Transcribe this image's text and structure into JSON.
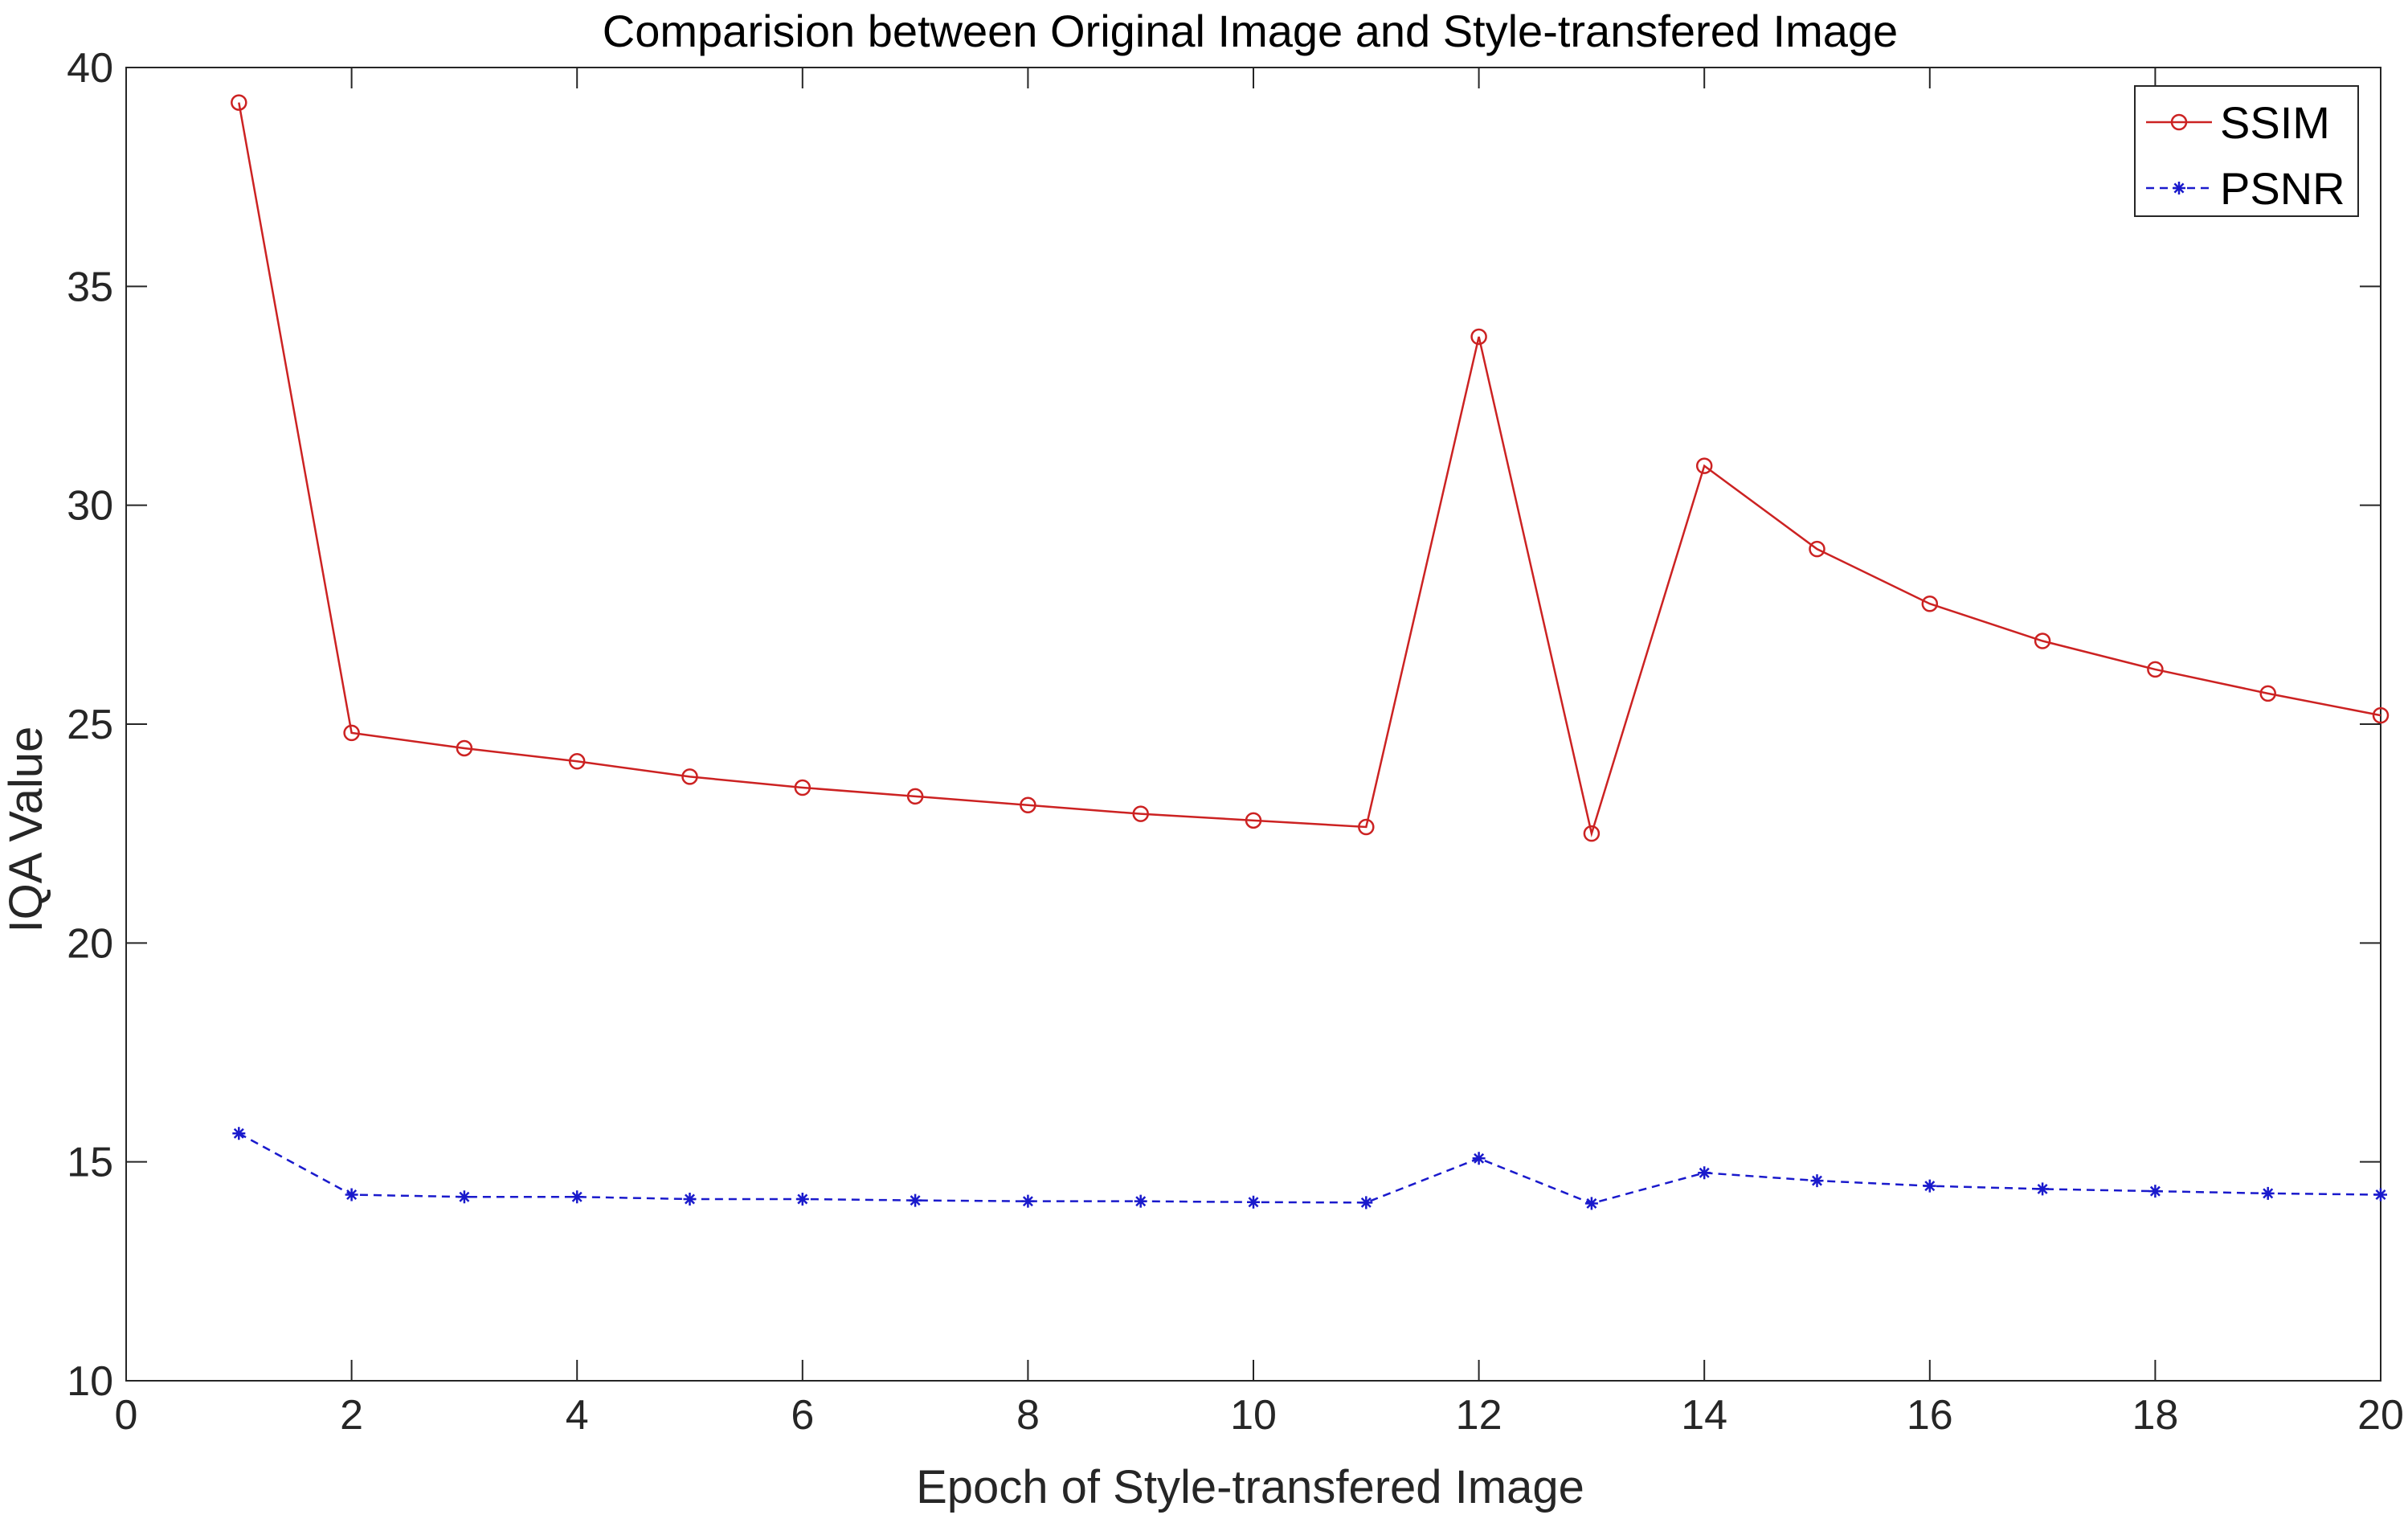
{
  "chart_data": {
    "type": "line",
    "title": "Comparision between Original Image and Style-transfered Image",
    "xlabel": "Epoch of Style-transfered Image",
    "ylabel": "IQA Value",
    "xlim": [
      0,
      20
    ],
    "ylim": [
      10,
      40
    ],
    "xticks": [
      0,
      2,
      4,
      6,
      8,
      10,
      12,
      14,
      16,
      18,
      20
    ],
    "yticks": [
      10,
      15,
      20,
      25,
      30,
      35,
      40
    ],
    "grid": false,
    "legend_position": "top-right",
    "x": [
      1,
      2,
      3,
      4,
      5,
      6,
      7,
      8,
      9,
      10,
      11,
      12,
      13,
      14,
      15,
      16,
      17,
      18,
      19,
      20
    ],
    "series": [
      {
        "name": "SSIM",
        "color": "#cc2222",
        "marker": "circle",
        "line_style": "solid",
        "values": [
          39.2,
          24.8,
          24.45,
          24.15,
          23.8,
          23.55,
          23.35,
          23.15,
          22.95,
          22.8,
          22.65,
          33.85,
          22.5,
          30.9,
          29.0,
          27.75,
          26.9,
          26.25,
          25.7,
          25.2
        ]
      },
      {
        "name": "PSNR",
        "color": "#1a1acc",
        "marker": "asterisk",
        "line_style": "dashed",
        "values": [
          15.65,
          14.25,
          14.2,
          14.2,
          14.15,
          14.15,
          14.12,
          14.1,
          14.1,
          14.08,
          14.07,
          15.08,
          14.05,
          14.75,
          14.57,
          14.45,
          14.38,
          14.33,
          14.28,
          14.25
        ]
      }
    ]
  }
}
